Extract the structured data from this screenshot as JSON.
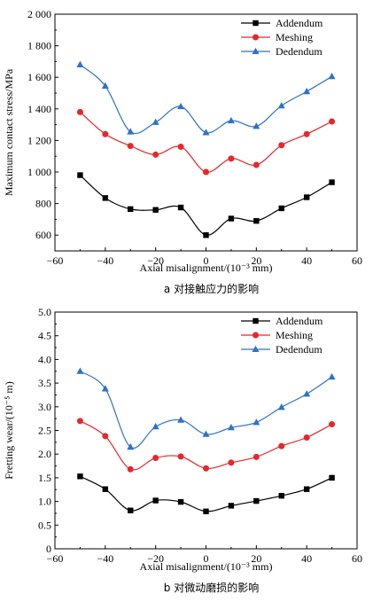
{
  "chart_data": [
    {
      "type": "line",
      "caption": "a 对接触应力的影响",
      "xlabel": "Axial misalignment/(10⁻³ mm)",
      "ylabel": "Maximum contact stress/MPa",
      "xlim": [
        -60,
        60
      ],
      "ylim": [
        500,
        2000
      ],
      "xticks": [
        -60,
        -40,
        -20,
        0,
        20,
        40,
        60
      ],
      "xtick_labels": [
        "−60",
        "−40",
        "−20",
        "0",
        "20",
        "40",
        "60"
      ],
      "yticks": [
        600,
        800,
        1000,
        1200,
        1400,
        1600,
        1800,
        2000
      ],
      "ytick_labels": [
        "600",
        "800",
        "1 000",
        "1 200",
        "1 400",
        "1 600",
        "1 800",
        "2 000"
      ],
      "legend_position": "top-right",
      "x": [
        -50,
        -40,
        -30,
        -20,
        -10,
        0,
        10,
        20,
        30,
        40,
        50
      ],
      "series": [
        {
          "name": "Addendum",
          "marker": "square",
          "color": "#000000",
          "values": [
            980,
            835,
            765,
            760,
            775,
            600,
            705,
            690,
            770,
            840,
            935
          ]
        },
        {
          "name": "Meshing",
          "marker": "circle",
          "color": "#e8262b",
          "values": [
            1380,
            1240,
            1165,
            1110,
            1160,
            1000,
            1085,
            1045,
            1170,
            1240,
            1320
          ]
        },
        {
          "name": "Dedendum",
          "marker": "triangle",
          "color": "#2f72c8",
          "values": [
            1680,
            1545,
            1255,
            1315,
            1415,
            1250,
            1325,
            1290,
            1420,
            1510,
            1605
          ]
        }
      ]
    },
    {
      "type": "line",
      "caption": "b 对微动磨损的影响",
      "xlabel": "Axial misalignment/(10⁻³ mm)",
      "ylabel": "Fretting wear/(10⁻⁵ m)",
      "xlim": [
        -60,
        60
      ],
      "ylim": [
        0,
        5
      ],
      "xticks": [
        -60,
        -40,
        -20,
        0,
        20,
        40,
        60
      ],
      "xtick_labels": [
        "−60",
        "−40",
        "−20",
        "0",
        "20",
        "40",
        "60"
      ],
      "yticks": [
        0,
        0.5,
        1,
        1.5,
        2,
        2.5,
        3,
        3.5,
        4,
        4.5,
        5
      ],
      "ytick_labels": [
        "0",
        "0.5",
        "1.0",
        "1.5",
        "2.0",
        "2.5",
        "3.0",
        "3.5",
        "4.0",
        "4.5",
        "5.0"
      ],
      "legend_position": "top-right",
      "x": [
        -50,
        -40,
        -30,
        -20,
        -10,
        0,
        10,
        20,
        30,
        40,
        50
      ],
      "series": [
        {
          "name": "Addendum",
          "marker": "square",
          "color": "#000000",
          "values": [
            1.53,
            1.26,
            0.81,
            1.02,
            0.99,
            0.79,
            0.91,
            1.01,
            1.12,
            1.26,
            1.5
          ]
        },
        {
          "name": "Meshing",
          "marker": "circle",
          "color": "#e8262b",
          "values": [
            2.7,
            2.38,
            1.68,
            1.92,
            1.95,
            1.7,
            1.82,
            1.94,
            2.17,
            2.35,
            2.63
          ]
        },
        {
          "name": "Dedendum",
          "marker": "triangle",
          "color": "#2f72c8",
          "values": [
            3.75,
            3.38,
            2.15,
            2.58,
            2.72,
            2.42,
            2.56,
            2.67,
            2.99,
            3.27,
            3.63
          ]
        }
      ]
    }
  ]
}
